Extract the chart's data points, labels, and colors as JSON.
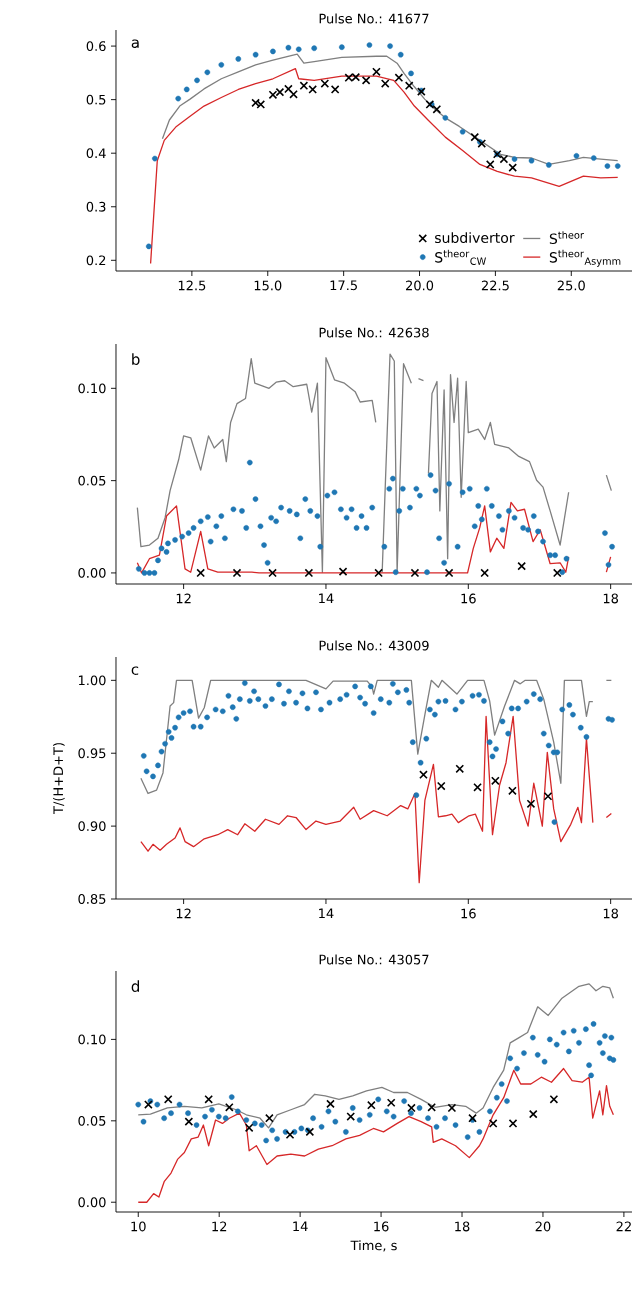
{
  "chart_data": [
    {
      "type": "line",
      "title": "Pulse No.: 41677",
      "annotations": [
        "a"
      ],
      "legend": "bottom right",
      "xlim": [
        10.0,
        27.0
      ],
      "ylim": [
        0.18,
        0.63
      ],
      "xticks": [
        12.5,
        {
          "value": 15,
          "label": "15.0"
        },
        17.5,
        {
          "value": 20,
          "label": "20.0"
        },
        22.5,
        {
          "value": 25,
          "label": "25.0"
        }
      ],
      "yticks": [
        0.2,
        0.3,
        0.4,
        0.5,
        0.6
      ],
      "series": [
        {
          "name": "subdivertor",
          "type": "scatter",
          "marker": "cross",
          "color": "#000000",
          "x": [
            14.6,
            14.77,
            15.17,
            15.4,
            15.68,
            15.85,
            16.19,
            16.48,
            16.88,
            17.22,
            17.67,
            17.9,
            18.24,
            18.58,
            18.87,
            19.32,
            19.66,
            20.06,
            20.34,
            20.57,
            21.82,
            22.05,
            22.33,
            22.56,
            22.78,
            23.07
          ],
          "values": [
            0.494,
            0.491,
            0.509,
            0.514,
            0.52,
            0.51,
            0.526,
            0.519,
            0.53,
            0.519,
            0.541,
            0.542,
            0.536,
            0.552,
            0.53,
            0.541,
            0.526,
            0.515,
            0.491,
            0.482,
            0.43,
            0.418,
            0.379,
            0.398,
            0.389,
            0.373
          ]
        },
        {
          "name": "S$^{theor}$$_{CW}$",
          "type": "scatter",
          "marker": "circle",
          "color": "#1f77b4",
          "x": [
            11.08,
            11.28,
            12.05,
            12.33,
            12.67,
            13.01,
            13.47,
            14.03,
            14.6,
            15.17,
            15.68,
            16.02,
            16.53,
            17.44,
            18.35,
            19.03,
            19.38,
            19.72,
            20.06,
            20.4,
            20.85,
            21.42,
            21.99,
            22.56,
            23.13,
            23.69,
            24.26,
            25.17,
            25.74,
            26.19,
            26.53
          ],
          "values": [
            0.226,
            0.39,
            0.502,
            0.519,
            0.536,
            0.551,
            0.565,
            0.576,
            0.584,
            0.59,
            0.597,
            0.594,
            0.596,
            0.598,
            0.602,
            0.6,
            0.584,
            0.549,
            0.517,
            0.491,
            0.466,
            0.44,
            0.421,
            0.398,
            0.389,
            0.386,
            0.378,
            0.395,
            0.391,
            0.376,
            0.376
          ]
        },
        {
          "name": "S$^{theor}$",
          "color": "#7f7f7f",
          "x": [
            11.53,
            11.76,
            12.1,
            12.44,
            12.9,
            13.47,
            14.03,
            14.6,
            15.17,
            15.97,
            16.19,
            16.53,
            17.44,
            18.58,
            18.92,
            19.26,
            19.49,
            19.83,
            20.17,
            20.51,
            20.85,
            21.31,
            21.99,
            22.67,
            23.13,
            23.69,
            24.26,
            24.94,
            25.4,
            25.97,
            26.53
          ],
          "values": [
            0.427,
            0.462,
            0.488,
            0.501,
            0.52,
            0.539,
            0.552,
            0.565,
            0.574,
            0.585,
            0.568,
            0.571,
            0.579,
            0.581,
            0.581,
            0.568,
            0.549,
            0.524,
            0.501,
            0.482,
            0.466,
            0.45,
            0.424,
            0.398,
            0.392,
            0.391,
            0.379,
            0.386,
            0.392,
            0.389,
            0.386
          ]
        },
        {
          "name": "S$^{theor}$$_{Asymm}$",
          "color": "#d62728",
          "x": [
            11.14,
            11.36,
            11.59,
            11.99,
            12.44,
            12.9,
            13.47,
            14.03,
            14.6,
            15.17,
            15.91,
            16.02,
            16.53,
            17.44,
            18.58,
            19.15,
            19.49,
            19.83,
            20.28,
            20.85,
            21.42,
            21.99,
            22.56,
            23.13,
            23.69,
            24.6,
            25.4,
            25.97,
            26.53
          ],
          "values": [
            0.194,
            0.386,
            0.424,
            0.45,
            0.469,
            0.488,
            0.504,
            0.519,
            0.53,
            0.539,
            0.558,
            0.539,
            0.536,
            0.544,
            0.544,
            0.536,
            0.514,
            0.488,
            0.462,
            0.43,
            0.405,
            0.379,
            0.366,
            0.357,
            0.354,
            0.338,
            0.357,
            0.354,
            0.355
          ]
        }
      ]
    },
    {
      "type": "line",
      "title": "Pulse No.: 42638",
      "annotations": [
        "b"
      ],
      "xlim": [
        11.05,
        18.3
      ],
      "ylim": [
        -0.006,
        0.124
      ],
      "xticks": [
        12,
        14,
        16,
        18
      ],
      "yticks": [
        {
          "value": 0,
          "label": "0.00"
        },
        0.05,
        {
          "value": 0.1,
          "label": "0.10"
        }
      ],
      "series": [
        {
          "color": "#7f7f7f",
          "x": [
            11.35,
            11.4,
            11.52,
            11.64,
            11.74,
            11.81,
            11.93,
            12.0,
            12.1,
            12.24,
            12.35,
            12.43,
            12.55,
            12.6,
            12.66,
            12.75,
            12.87,
            12.95,
            13.0,
            13.2,
            13.3,
            13.42,
            13.54,
            13.73,
            13.8,
            13.88,
            13.95,
            14.0,
            14.12,
            14.26,
            14.41,
            14.48,
            14.65,
            14.7,
            14.75,
            14.79,
            14.9,
            14.96,
            15.0,
            15.09,
            15.2,
            15.25,
            15.3,
            15.37,
            15.4,
            15.44,
            15.49,
            15.56,
            15.6,
            15.66,
            15.71,
            15.75,
            15.8,
            15.85,
            15.9,
            15.97,
            16.0,
            16.14,
            16.23,
            16.31,
            16.37,
            16.57,
            16.71,
            16.86,
            16.96,
            17.05,
            17.15,
            17.29,
            17.41,
            17.7,
            17.94,
            18.01
          ],
          "values": [
            0.0354,
            0.0142,
            0.0151,
            0.0188,
            0.0299,
            0.0446,
            0.0613,
            0.0742,
            0.0732,
            0.0557,
            0.0742,
            0.0677,
            0.0723,
            0.0603,
            0.0815,
            0.0917,
            0.0945,
            0.1161,
            0.1028,
            0.1,
            0.1033,
            0.1041,
            0.1009,
            0.1022,
            0.0871,
            0.1028,
            0.0004,
            0.1166,
            0.1046,
            0.1028,
            0.0982,
            0.0926,
            0.0935,
            0.0815,
            null,
            0.0004,
            0.1185,
            0.1148,
            0.0004,
            0.1133,
            0.1028,
            null,
            0.1052,
            0.1042,
            null,
            0.0539,
            0.0972,
            0.1037,
            0.0336,
            0.0991,
            0.0077,
            0.1074,
            0.0815,
            0.1055,
            0.041,
            0.1037,
            0.076,
            0.0779,
            0.0723,
            0.0815,
            0.0696,
            0.0677,
            0.0631,
            0.0603,
            0.0502,
            0.0465,
            0.0336,
            0.0151,
            0.0437,
            null,
            0.053,
            0.0446
          ]
        },
        {
          "color": "#d62728",
          "x": [
            11.35,
            11.41,
            11.52,
            11.66,
            11.76,
            11.9,
            12.02,
            12.1,
            12.24,
            12.34,
            12.48,
            12.96,
            13.06,
            15.99,
            16.07,
            16.16,
            16.23,
            16.31,
            16.4,
            16.5,
            16.6,
            16.69,
            16.79,
            16.91,
            17.01,
            17.15,
            17.29,
            17.37,
            17.41,
            17.7,
            17.94,
            18.0
          ],
          "values": [
            0.0055,
            0.0,
            0.0077,
            0.0096,
            0.0308,
            0.0363,
            0.0022,
            0.0004,
            0.0225,
            0.0022,
            0.0004,
            0.0004,
            0.0,
            0.0,
            0.0133,
            0.0244,
            0.0363,
            0.0114,
            0.0188,
            0.0133,
            0.0382,
            0.0336,
            0.0345,
            0.017,
            0.0234,
            0.005,
            0.0055,
            0.0004,
            0.0087,
            null,
            0.0004,
            0.0087
          ]
        },
        {
          "type": "scatter",
          "marker": "circle",
          "color": "#1f77b4",
          "x": [
            11.37,
            11.45,
            11.52,
            11.59,
            11.64,
            11.69,
            11.76,
            11.78,
            11.88,
            11.98,
            12.07,
            12.14,
            12.24,
            12.34,
            12.38,
            12.46,
            12.53,
            12.58,
            12.7,
            12.82,
            12.88,
            12.93,
            13.01,
            13.08,
            13.13,
            13.18,
            13.23,
            13.3,
            13.37,
            13.49,
            13.59,
            13.64,
            13.71,
            13.78,
            13.88,
            13.92,
            14.02,
            14.12,
            14.21,
            14.29,
            14.36,
            14.43,
            14.5,
            14.57,
            14.65,
            14.82,
            14.89,
            14.94,
            14.98,
            15.03,
            15.08,
            15.18,
            15.27,
            15.32,
            15.42,
            15.47,
            15.54,
            15.59,
            15.66,
            15.73,
            15.85,
            15.92,
            16.02,
            16.09,
            16.14,
            16.19,
            16.26,
            16.33,
            16.43,
            16.48,
            16.57,
            16.65,
            16.77,
            16.84,
            16.92,
            16.98,
            17.05,
            17.15,
            17.22,
            17.32,
            17.38,
            17.92,
            17.97,
            18.02
          ],
          "values": [
            0.0022,
            0.0,
            0.0,
            0.0,
            0.0068,
            0.0133,
            0.0114,
            0.016,
            0.0179,
            0.0197,
            0.0216,
            0.0244,
            0.028,
            0.0303,
            0.017,
            0.0253,
            0.0308,
            0.0188,
            0.0345,
            0.0336,
            0.0244,
            0.0598,
            0.04,
            0.0253,
            0.0151,
            0.0055,
            0.0299,
            0.028,
            0.0354,
            0.0336,
            0.0317,
            0.0188,
            0.04,
            0.0336,
            0.0308,
            0.0142,
            0.0419,
            0.0437,
            0.0345,
            0.0299,
            0.0345,
            0.0244,
            0.0308,
            0.0244,
            0.0354,
            0.0142,
            0.0456,
            0.0511,
            0.0004,
            0.0336,
            0.0456,
            0.0354,
            0.0456,
            0.0419,
            0.0004,
            0.053,
            0.0446,
            0.0188,
            0.0055,
            0.0483,
            0.0142,
            0.0437,
            0.0456,
            0.0253,
            0.0363,
            0.029,
            0.0456,
            0.0363,
            0.0308,
            0.0234,
            0.0336,
            0.0299,
            0.0244,
            0.0234,
            0.0308,
            0.0225,
            0.017,
            0.0096,
            0.0096,
            0.0004,
            0.0077,
            0.0216,
            0.0044,
            0.0142
          ]
        },
        {
          "type": "scatter",
          "marker": "cross",
          "color": "#000000",
          "x": [
            12.24,
            12.75,
            13.25,
            13.76,
            14.24,
            14.74,
            15.25,
            15.73,
            16.23,
            16.75,
            17.25
          ],
          "values": [
            0,
            0,
            0,
            0,
            0.0007,
            0,
            0,
            0,
            0,
            0.0037,
            0
          ]
        }
      ]
    },
    {
      "type": "line",
      "title": "Pulse No.: 43009",
      "annotations": [
        "c"
      ],
      "ylabel": "T/(H+D+T)",
      "xlim": [
        11.05,
        18.3
      ],
      "ylim": [
        0.85,
        1.016
      ],
      "xticks": [
        12,
        14,
        16,
        18
      ],
      "yticks": [
        0.85,
        {
          "value": 0.9,
          "label": "0.90"
        },
        0.95,
        {
          "value": 1.0,
          "label": "1.00"
        }
      ],
      "series": [
        {
          "color": "#7f7f7f",
          "x": [
            11.4,
            11.5,
            11.62,
            11.71,
            11.81,
            11.86,
            11.9,
            12.12,
            12.21,
            12.29,
            12.38,
            13.72,
            14.0,
            14.1,
            14.58,
            14.65,
            14.67,
            14.72,
            15.2,
            15.29,
            15.39,
            15.48,
            15.58,
            15.63,
            15.84,
            15.99,
            16.22,
            16.3,
            16.37,
            16.51,
            16.65,
            16.73,
            16.8,
            16.96,
            17.06,
            17.2,
            17.3,
            17.35,
            17.59,
            17.66,
            17.7,
            17.75,
            17.85,
            17.94,
            18.01
          ],
          "values": [
            0.9329,
            0.9224,
            0.9247,
            0.9365,
            0.9824,
            0.9847,
            1.0,
            1.0,
            0.9741,
            0.9812,
            1.0,
            1.0,
            0.9941,
            0.9995,
            0.9995,
            0.9953,
            0.9906,
            1.0,
            1.0,
            0.9494,
            0.9765,
            1.0,
            0.9953,
            1.0,
            0.9906,
            1.0,
            1.0,
            0.9859,
            0.9624,
            0.9824,
            1.0,
            0.9976,
            1.0,
            1.0,
            0.9871,
            0.9576,
            0.9294,
            1.0,
            1.0,
            0.9753,
            0.9854,
            0.9854,
            null,
            1.0,
            1.0
          ]
        },
        {
          "color": "#d62728",
          "x": [
            11.4,
            11.5,
            11.57,
            11.67,
            11.76,
            11.88,
            11.95,
            12.02,
            12.14,
            12.29,
            12.48,
            12.62,
            12.76,
            12.86,
            13.0,
            13.15,
            13.34,
            13.46,
            13.58,
            13.72,
            13.86,
            14.0,
            14.2,
            14.39,
            14.48,
            14.67,
            14.86,
            15.05,
            15.15,
            15.25,
            15.31,
            15.39,
            15.51,
            15.58,
            15.68,
            15.77,
            15.86,
            16.01,
            16.1,
            16.2,
            16.25,
            16.34,
            16.44,
            16.53,
            16.63,
            16.72,
            16.84,
            16.92,
            17.04,
            17.11,
            17.2,
            17.3,
            17.44,
            17.54,
            17.59,
            17.66,
            17.75,
            17.85,
            17.94,
            18.01
          ],
          "values": [
            0.8894,
            0.8828,
            0.8875,
            0.8835,
            0.8875,
            0.8918,
            0.8988,
            0.8894,
            0.8859,
            0.8913,
            0.8941,
            0.8976,
            0.8941,
            0.9016,
            0.8965,
            0.9047,
            0.9012,
            0.9071,
            0.9059,
            0.8976,
            0.9035,
            0.9012,
            0.9035,
            0.9129,
            0.9047,
            0.9106,
            0.9071,
            0.9141,
            0.9118,
            0.9224,
            0.8612,
            0.9176,
            0.9424,
            0.9064,
            0.9071,
            0.9082,
            0.9024,
            0.9071,
            0.9082,
            0.8965,
            0.9753,
            0.8941,
            0.9282,
            0.9435,
            0.9753,
            0.9176,
            0.9,
            0.9294,
            0.9,
            0.9506,
            0.9118,
            0.8894,
            0.9012,
            0.9129,
            0.9024,
            0.96,
            0.9024,
            null,
            0.9059,
            0.9087
          ]
        },
        {
          "type": "scatter",
          "marker": "circle",
          "color": "#1f77b4",
          "x": [
            11.44,
            11.48,
            11.57,
            11.64,
            11.69,
            11.74,
            11.79,
            11.83,
            11.88,
            11.93,
            12.0,
            12.09,
            12.14,
            12.24,
            12.33,
            12.45,
            12.55,
            12.63,
            12.69,
            12.74,
            12.79,
            12.86,
            12.93,
            12.99,
            13.05,
            13.15,
            13.24,
            13.34,
            13.41,
            13.48,
            13.58,
            13.67,
            13.74,
            13.86,
            13.93,
            14.05,
            14.2,
            14.29,
            14.41,
            14.48,
            14.55,
            14.63,
            14.67,
            14.77,
            14.89,
            14.94,
            15.01,
            15.13,
            15.17,
            15.22,
            15.27,
            15.33,
            15.41,
            15.46,
            15.53,
            15.58,
            15.68,
            15.82,
            15.91,
            16.06,
            16.15,
            16.22,
            16.3,
            16.34,
            16.39,
            16.48,
            16.56,
            16.61,
            16.7,
            16.82,
            16.92,
            17.01,
            17.06,
            17.13,
            17.2,
            17.21,
            17.25,
            17.32,
            17.42,
            17.47,
            17.58,
            17.66,
            17.97,
            18.02
          ],
          "values": [
            0.9482,
            0.9376,
            0.9341,
            0.9416,
            0.9511,
            0.9565,
            0.9647,
            0.9605,
            0.9675,
            0.9746,
            0.9776,
            0.9788,
            0.9682,
            0.9682,
            0.9746,
            0.98,
            0.9788,
            0.9894,
            0.9816,
            0.9736,
            0.9871,
            0.9981,
            0.9859,
            0.9925,
            0.9871,
            0.9824,
            0.9871,
            0.9972,
            0.984,
            0.9925,
            0.9847,
            0.9911,
            0.9807,
            0.9918,
            0.98,
            0.9847,
            0.9871,
            0.9901,
            0.9958,
            0.9882,
            0.984,
            0.9958,
            0.9776,
            0.9871,
            0.9847,
            0.9976,
            0.9918,
            0.9934,
            0.9847,
            0.9576,
            0.9212,
            0.9435,
            0.96,
            0.98,
            0.9765,
            0.9854,
            0.9859,
            0.98,
            0.9854,
            0.9894,
            0.9901,
            0.9859,
            0.9576,
            0.9478,
            0.9529,
            0.9718,
            0.9635,
            0.9807,
            0.9807,
            0.9854,
            0.9906,
            0.9871,
            0.9635,
            0.9553,
            0.9506,
            0.9028,
            0.9506,
            0.98,
            0.9831,
            0.9765,
            0.9675,
            0.9612,
            0.9736,
            0.9729
          ]
        },
        {
          "type": "scatter",
          "marker": "cross",
          "color": "#000000",
          "x": [
            15.37,
            15.62,
            15.88,
            16.13,
            16.38,
            16.62,
            16.88,
            17.12
          ],
          "values": [
            0.9353,
            0.9275,
            0.9393,
            0.9266,
            0.9311,
            0.9242,
            0.9153,
            0.9205
          ]
        }
      ]
    },
    {
      "type": "line",
      "title": "Pulse No.: 43057",
      "annotations": [
        "d"
      ],
      "xlabel": "Time, s",
      "xlim": [
        9.45,
        22.2
      ],
      "ylim": [
        -0.006,
        0.142
      ],
      "xticks": [
        10,
        12,
        14,
        16,
        18,
        20,
        22
      ],
      "yticks": [
        {
          "value": 0,
          "label": "0.00"
        },
        0.05,
        {
          "value": 0.1,
          "label": "0.10"
        }
      ],
      "series": [
        {
          "color": "#7f7f7f",
          "x": [
            10.0,
            10.3,
            10.72,
            11.14,
            11.57,
            11.99,
            12.42,
            12.67,
            13.01,
            13.22,
            13.43,
            13.77,
            14.11,
            14.36,
            14.62,
            14.96,
            15.3,
            15.64,
            16.02,
            16.31,
            16.65,
            16.99,
            17.33,
            17.75,
            18.09,
            18.35,
            18.52,
            18.77,
            19.03,
            19.19,
            19.41,
            19.62,
            19.87,
            20.13,
            20.47,
            20.89,
            21.14,
            21.31,
            21.48,
            21.65,
            21.74
          ],
          "values": [
            0.0537,
            0.0541,
            0.0579,
            0.0589,
            0.0579,
            0.0604,
            0.0568,
            0.0537,
            0.0516,
            0.0457,
            0.0537,
            0.0568,
            0.06,
            0.0663,
            0.0653,
            0.0632,
            0.0653,
            0.0684,
            0.0705,
            0.0674,
            0.0674,
            0.0632,
            0.0583,
            0.06,
            0.0589,
            0.0547,
            0.0579,
            0.0705,
            0.0811,
            0.0979,
            0.1011,
            0.1042,
            0.12,
            0.1147,
            0.1253,
            0.1326,
            0.1341,
            0.1299,
            0.1326,
            0.1316,
            0.1253
          ]
        },
        {
          "color": "#d62728",
          "x": [
            10.0,
            10.21,
            10.38,
            10.51,
            10.64,
            10.81,
            10.97,
            11.14,
            11.31,
            11.48,
            11.61,
            11.74,
            11.91,
            12.08,
            12.25,
            12.5,
            12.67,
            12.74,
            12.92,
            13.18,
            13.43,
            13.77,
            14.11,
            14.45,
            14.79,
            15.13,
            15.47,
            15.81,
            16.06,
            16.4,
            16.69,
            16.99,
            17.25,
            17.29,
            17.5,
            17.84,
            18.18,
            18.43,
            18.52,
            18.77,
            19.03,
            19.28,
            19.45,
            19.7,
            19.96,
            20.21,
            20.51,
            20.72,
            20.97,
            21.14,
            21.23,
            21.4,
            21.48,
            21.57,
            21.65,
            21.74
          ],
          "values": [
            0,
            0,
            0.0053,
            0.0032,
            0.0126,
            0.0179,
            0.0263,
            0.0305,
            0.0389,
            0.04,
            0.0474,
            0.0347,
            0.0505,
            0.0484,
            0.0516,
            0.0547,
            0.0474,
            0.0316,
            0.0347,
            0.0232,
            0.0284,
            0.0295,
            0.0284,
            0.0326,
            0.0347,
            0.0389,
            0.0411,
            0.0453,
            0.0432,
            0.0484,
            0.0526,
            0.0495,
            0.0463,
            0.0368,
            0.0389,
            0.0347,
            0.0274,
            0.0347,
            0.0389,
            0.0537,
            0.0642,
            0.0811,
            0.0726,
            0.0726,
            0.0768,
            0.0737,
            0.0821,
            0.0747,
            0.0737,
            0.0768,
            0.0516,
            0.0684,
            0.0537,
            0.0716,
            0.0589,
            0.0537
          ]
        },
        {
          "type": "scatter",
          "marker": "circle",
          "color": "#1f77b4",
          "x": [
            10.0,
            10.13,
            10.3,
            10.47,
            10.64,
            10.81,
            11.02,
            11.23,
            11.44,
            11.65,
            11.82,
            11.99,
            12.16,
            12.31,
            12.46,
            12.67,
            12.88,
            13.05,
            13.16,
            13.31,
            13.43,
            13.64,
            13.86,
            14.03,
            14.19,
            14.32,
            14.53,
            14.7,
            14.87,
            15.13,
            15.3,
            15.47,
            15.72,
            15.93,
            16.14,
            16.31,
            16.57,
            16.74,
            16.95,
            17.16,
            17.37,
            17.58,
            17.84,
            18.14,
            18.26,
            18.43,
            18.69,
            18.86,
            18.98,
            19.11,
            19.19,
            19.36,
            19.53,
            19.75,
            19.87,
            20.04,
            20.17,
            20.34,
            20.51,
            20.64,
            20.76,
            20.89,
            21.06,
            21.14,
            21.19,
            21.25,
            21.4,
            21.48,
            21.53,
            21.65,
            21.69,
            21.74
          ],
          "values": [
            0.06,
            0.0495,
            0.0621,
            0.06,
            0.0516,
            0.0547,
            0.06,
            0.0547,
            0.0474,
            0.0526,
            0.0568,
            0.0526,
            0.0516,
            0.0646,
            0.0558,
            0.0505,
            0.0484,
            0.0474,
            0.0379,
            0.0442,
            0.0389,
            0.0432,
            0.0432,
            0.0453,
            0.0442,
            0.0516,
            0.0463,
            0.0558,
            0.0495,
            0.0432,
            0.0579,
            0.0505,
            0.0537,
            0.0632,
            0.0558,
            0.0526,
            0.0621,
            0.0547,
            0.0579,
            0.0516,
            0.0463,
            0.0516,
            0.0474,
            0.04,
            0.0505,
            0.0432,
            0.0558,
            0.0642,
            0.0726,
            0.0621,
            0.0884,
            0.0821,
            0.0916,
            0.1011,
            0.0905,
            0.0863,
            0.1,
            0.0968,
            0.1042,
            0.0926,
            0.1053,
            0.0979,
            0.1063,
            0.0842,
            0.0779,
            0.1095,
            0.0979,
            0.0916,
            0.1021,
            0.0884,
            0.1011,
            0.0874
          ]
        },
        {
          "type": "scatter",
          "marker": "cross",
          "color": "#000000",
          "x": [
            10.25,
            10.74,
            11.25,
            11.74,
            12.25,
            12.74,
            13.24,
            13.75,
            14.24,
            14.75,
            15.25,
            15.76,
            16.25,
            16.75,
            17.25,
            17.75,
            18.26,
            18.77,
            19.26,
            19.76,
            20.27
          ],
          "values": [
            0.06,
            0.0632,
            0.0495,
            0.0632,
            0.0583,
            0.0457,
            0.0516,
            0.0415,
            0.0432,
            0.0604,
            0.0526,
            0.0596,
            0.0611,
            0.0579,
            0.0583,
            0.0579,
            0.0516,
            0.0484,
            0.0484,
            0.0541,
            0.0632
          ]
        }
      ]
    }
  ]
}
